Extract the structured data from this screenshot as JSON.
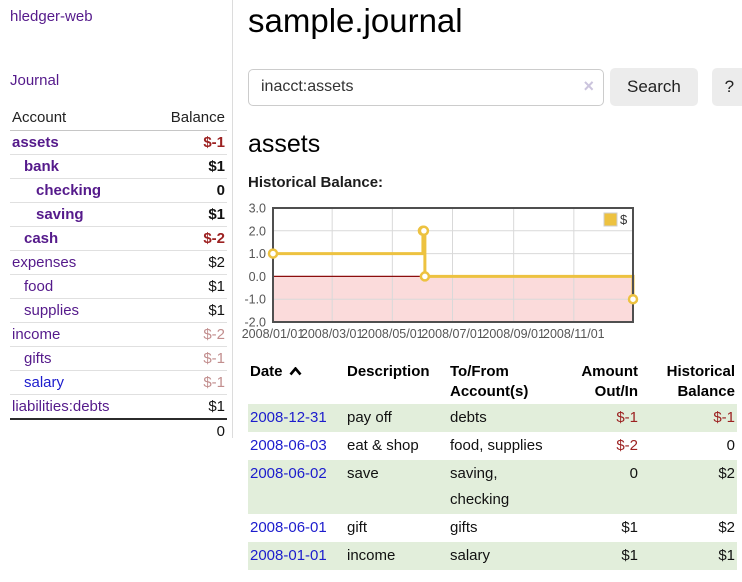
{
  "theme": {
    "link_purple": "#551a8b",
    "link_blue": "#1c1ccd",
    "negative_red": "#9c2121",
    "faded_negative_red": "#c28e8e",
    "stripe_green": "#e2eedb",
    "button_gray": "#ececec",
    "chart_gold": "#edc240"
  },
  "sidebar": {
    "app_title": "hledger-web",
    "journal_link": "Journal",
    "accounts_table": {
      "account_header": "Account",
      "balance_header": "Balance",
      "rows": [
        {
          "name": "assets",
          "balance": "$-1",
          "indent": 0,
          "bold": true,
          "name_style": "purple",
          "balance_style": "negative"
        },
        {
          "name": "bank",
          "balance": "$1",
          "indent": 1,
          "bold": true,
          "name_style": "purple",
          "balance_style": "normal"
        },
        {
          "name": "checking",
          "balance": "0",
          "indent": 2,
          "bold": true,
          "name_style": "purple",
          "balance_style": "normal"
        },
        {
          "name": "saving",
          "balance": "$1",
          "indent": 2,
          "bold": true,
          "name_style": "purple",
          "balance_style": "normal"
        },
        {
          "name": "cash",
          "balance": "$-2",
          "indent": 1,
          "bold": true,
          "name_style": "purple",
          "balance_style": "negative"
        },
        {
          "name": "expenses",
          "balance": "$2",
          "indent": 0,
          "bold": false,
          "name_style": "purple",
          "balance_style": "normal"
        },
        {
          "name": "food",
          "balance": "$1",
          "indent": 1,
          "bold": false,
          "name_style": "purple",
          "balance_style": "normal"
        },
        {
          "name": "supplies",
          "balance": "$1",
          "indent": 1,
          "bold": false,
          "name_style": "purple",
          "balance_style": "normal"
        },
        {
          "name": "income",
          "balance": "$-2",
          "indent": 0,
          "bold": false,
          "name_style": "purple",
          "balance_style": "faded-negative"
        },
        {
          "name": "gifts",
          "balance": "$-1",
          "indent": 1,
          "bold": false,
          "name_style": "purple",
          "balance_style": "faded-negative"
        },
        {
          "name": "salary",
          "balance": "$-1",
          "indent": 1,
          "bold": false,
          "name_style": "blue",
          "balance_style": "faded-negative"
        },
        {
          "name": "liabilities:debts",
          "balance": "$1",
          "indent": 0,
          "bold": false,
          "name_style": "purple",
          "balance_style": "normal"
        }
      ],
      "total": "0"
    }
  },
  "main": {
    "title": "sample.journal",
    "search": {
      "value": "inacct:assets",
      "clear_icon": "×",
      "button_label": "Search",
      "help_label": "?"
    },
    "account_heading": "assets",
    "table": {
      "headers": [
        "Date",
        "Description",
        "To/From Account(s)",
        "Amount Out/In",
        "Historical Balance"
      ],
      "sort_column": "Date",
      "sort_direction": "ascending",
      "rows": [
        {
          "date": "2008-12-31",
          "description": "pay off",
          "accounts": "debts",
          "amount": "$-1",
          "balance": "$-1",
          "amount_negative": true,
          "balance_negative": true
        },
        {
          "date": "2008-06-03",
          "description": "eat & shop",
          "accounts": "food, supplies",
          "amount": "$-2",
          "balance": "0",
          "amount_negative": true,
          "balance_negative": false
        },
        {
          "date": "2008-06-02",
          "description": "save",
          "accounts": "saving, checking",
          "amount": "0",
          "balance": "$2",
          "amount_negative": false,
          "balance_negative": false
        },
        {
          "date": "2008-06-01",
          "description": "gift",
          "accounts": "gifts",
          "amount": "$1",
          "balance": "$2",
          "amount_negative": false,
          "balance_negative": false
        },
        {
          "date": "2008-01-01",
          "description": "income",
          "accounts": "salary",
          "amount": "$1",
          "balance": "$1",
          "amount_negative": false,
          "balance_negative": false
        }
      ]
    }
  },
  "chart_data": {
    "type": "line",
    "title": "Historical Balance:",
    "steps": true,
    "xlim": [
      0,
      365
    ],
    "ylim": [
      -2.0,
      3.0
    ],
    "series": [
      {
        "name": "$",
        "color": "#edc240",
        "points": [
          {
            "date": "2008-01-01",
            "day": 0,
            "value": 1
          },
          {
            "date": "2008-06-01",
            "day": 152,
            "value": 2
          },
          {
            "date": "2008-06-02",
            "day": 153,
            "value": 2
          },
          {
            "date": "2008-06-03",
            "day": 154,
            "value": 0
          },
          {
            "date": "2008-12-31",
            "day": 365,
            "value": -1
          }
        ]
      }
    ],
    "x_ticks": [
      {
        "label": "2008/01/01",
        "day": 0
      },
      {
        "label": "2008/03/01",
        "day": 60
      },
      {
        "label": "2008/05/01",
        "day": 121
      },
      {
        "label": "2008/07/01",
        "day": 182
      },
      {
        "label": "2008/09/01",
        "day": 244
      },
      {
        "label": "2008/11/01",
        "day": 305
      }
    ],
    "y_ticks": [
      {
        "label": "3.0",
        "value": 3
      },
      {
        "label": "2.0",
        "value": 2
      },
      {
        "label": "1.0",
        "value": 1
      },
      {
        "label": "0.0",
        "value": 0
      },
      {
        "label": "-1.0",
        "value": -1
      },
      {
        "label": "-2.0",
        "value": -2
      }
    ],
    "legend": {
      "label": "$",
      "position": "top-right"
    },
    "grid": true,
    "zero_line_color": "#8c0d0d",
    "negative_region_color": "#fbdbdb"
  }
}
